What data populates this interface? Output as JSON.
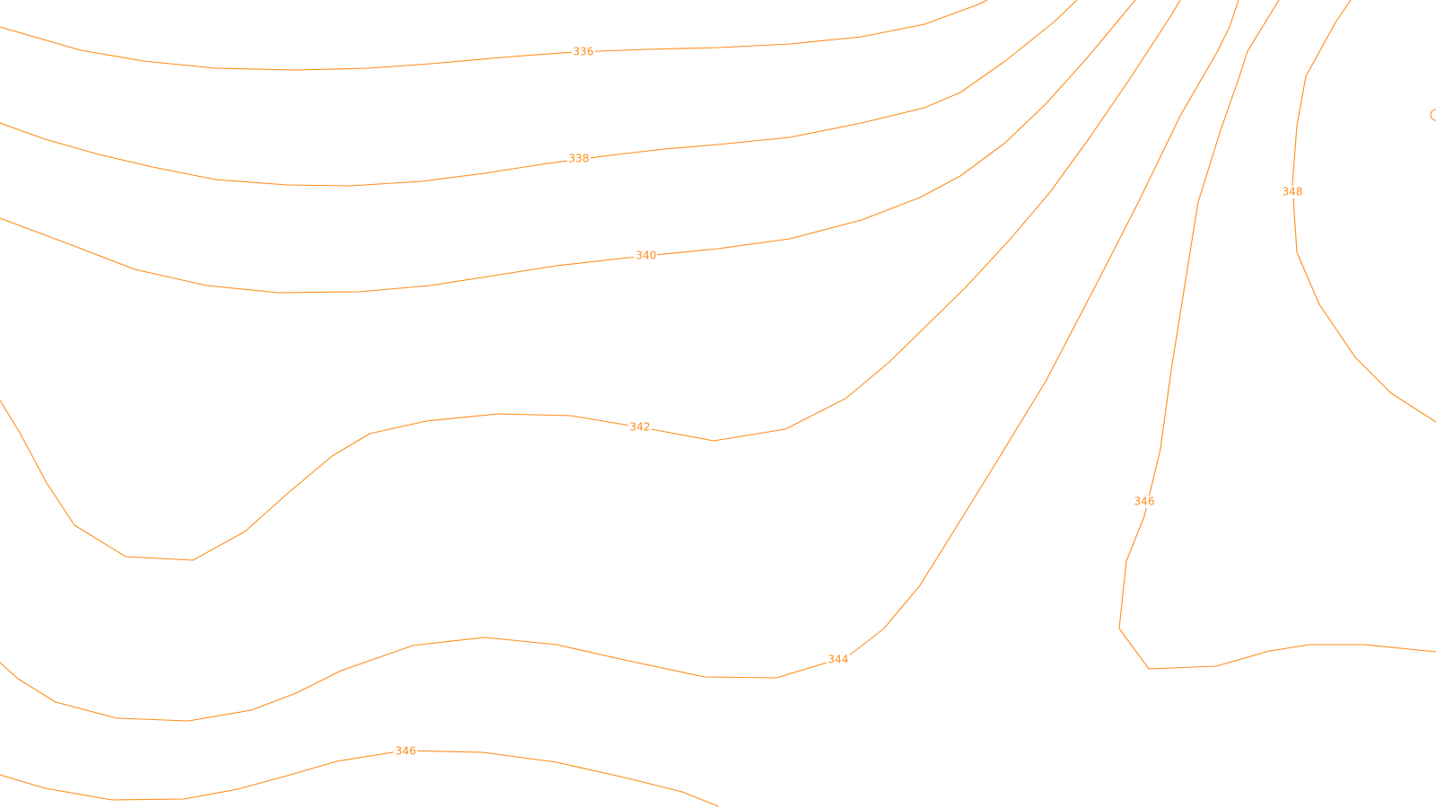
{
  "map": {
    "line_color": "#ff8c1a",
    "background": "#ffffff",
    "contours": [
      {
        "id": "336",
        "label": "336"
      },
      {
        "id": "338",
        "label": "338"
      },
      {
        "id": "340",
        "label": "340"
      },
      {
        "id": "342",
        "label": "342"
      },
      {
        "id": "344",
        "label": "344"
      },
      {
        "id": "346-south",
        "label": "346"
      },
      {
        "id": "346-east",
        "label": "346"
      },
      {
        "id": "348",
        "label": "348"
      }
    ]
  }
}
